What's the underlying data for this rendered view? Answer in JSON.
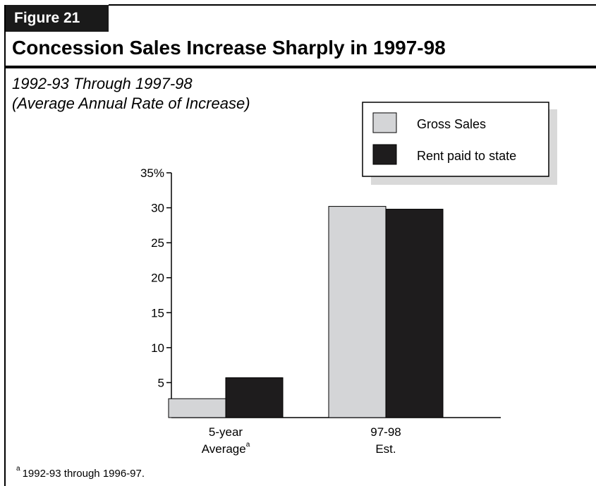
{
  "figure_label": "Figure 21",
  "title": "Concession Sales Increase Sharply in 1997-98",
  "subtitle_line1": "1992-93 Through 1997-98",
  "subtitle_line2": "(Average Annual Rate of Increase)",
  "colors": {
    "gross_sales": "#d4d5d7",
    "rent": "#1e1c1d",
    "shadow": "#d9d9d9",
    "frame": "#000000"
  },
  "legend": [
    {
      "label": "Gross Sales",
      "color_key": "gross_sales"
    },
    {
      "label": "Rent paid to state",
      "color_key": "rent"
    }
  ],
  "footnote": {
    "marker": "a",
    "text": "1992-93 through 1996-97."
  },
  "chart_data": {
    "type": "bar",
    "categories": [
      {
        "lines": [
          "5-year",
          "Average"
        ],
        "superscript": "a"
      },
      {
        "lines": [
          "97-98",
          "Est."
        ],
        "superscript": ""
      }
    ],
    "series": [
      {
        "name": "Gross Sales",
        "values": [
          2.7,
          30.2
        ]
      },
      {
        "name": "Rent paid to state",
        "values": [
          5.7,
          29.8
        ]
      }
    ],
    "ylim": [
      0,
      35
    ],
    "yticks": [
      5,
      10,
      15,
      20,
      25,
      30,
      35
    ],
    "ytick_labels": [
      "5",
      "10",
      "15",
      "20",
      "25",
      "30",
      "35%"
    ],
    "legend_position": "top-right",
    "grid": false
  }
}
